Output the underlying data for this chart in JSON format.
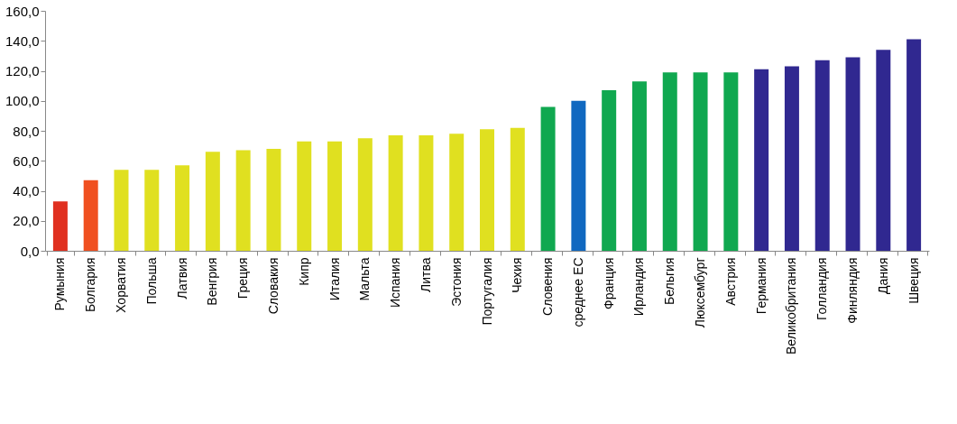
{
  "chart_data": {
    "type": "bar",
    "categories": [
      "Румыния",
      "Болгария",
      "Хорватия",
      "Польша",
      "Латвия",
      "Венгрия",
      "Греция",
      "Словакия",
      "Кипр",
      "Италия",
      "Мальта",
      "Испания",
      "Литва",
      "Эстония",
      "Португалия",
      "Чехия",
      "Словения",
      "среднее ЕС",
      "Франция",
      "Ирландия",
      "Бельгия",
      "Люксембург",
      "Австрия",
      "Германия",
      "Великобритания",
      "Голландия",
      "Финляндия",
      "Дания",
      "Швеция"
    ],
    "values": [
      33,
      47,
      54,
      54,
      57,
      66,
      67,
      68,
      73,
      73,
      75,
      77,
      77,
      78,
      81,
      82,
      96,
      100,
      107,
      113,
      119,
      119,
      119,
      121,
      123,
      127,
      129,
      134,
      141
    ],
    "colors": [
      "#e03020",
      "#f05020",
      "#e0e020",
      "#e0e020",
      "#e0e020",
      "#e0e020",
      "#e0e020",
      "#e0e020",
      "#e0e020",
      "#e0e020",
      "#e0e020",
      "#e0e020",
      "#e0e020",
      "#e0e020",
      "#e0e020",
      "#e0e020",
      "#10a850",
      "#1068c0",
      "#10a850",
      "#10a850",
      "#10a850",
      "#10a850",
      "#10a850",
      "#302890",
      "#302890",
      "#302890",
      "#302890",
      "#302890",
      "#302890"
    ],
    "ylim": [
      0,
      160
    ],
    "yticks": [
      {
        "value": 0,
        "label": "0,0"
      },
      {
        "value": 20,
        "label": "20,0"
      },
      {
        "value": 40,
        "label": "40,0"
      },
      {
        "value": 60,
        "label": "60,0"
      },
      {
        "value": 80,
        "label": "80,0"
      },
      {
        "value": 100,
        "label": "100,0"
      },
      {
        "value": 120,
        "label": "120,0"
      },
      {
        "value": 140,
        "label": "140,0"
      },
      {
        "value": 160,
        "label": "160,0"
      }
    ],
    "grid": false
  }
}
